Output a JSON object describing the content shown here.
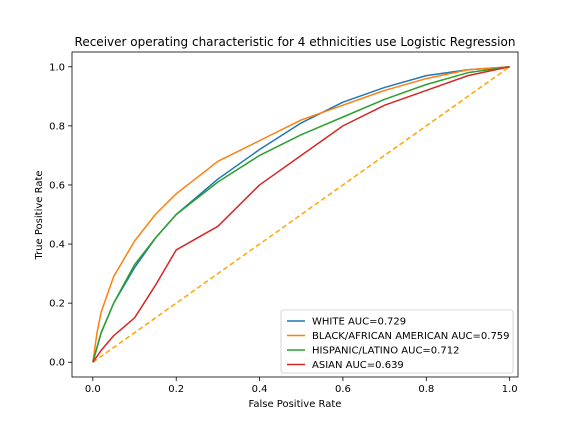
{
  "chart_data": {
    "type": "line",
    "title": "Receiver operating characteristic for 4 ethnicities use Logistic Regression",
    "xlabel": "False Positive Rate",
    "ylabel": "True Positive Rate",
    "xlim": [
      -0.05,
      1.02
    ],
    "ylim": [
      -0.05,
      1.05
    ],
    "xticks": [
      "0.0",
      "0.2",
      "0.4",
      "0.6",
      "0.8",
      "1.0"
    ],
    "yticks": [
      "0.0",
      "0.2",
      "0.4",
      "0.6",
      "0.8",
      "1.0"
    ],
    "grid": false,
    "legend_position": "lower-right",
    "series": [
      {
        "name": "WHITE AUC=0.729",
        "color": "#1f77b4",
        "x": [
          0,
          0.01,
          0.02,
          0.05,
          0.1,
          0.15,
          0.2,
          0.3,
          0.4,
          0.5,
          0.6,
          0.7,
          0.8,
          0.9,
          1.0
        ],
        "y": [
          0,
          0.05,
          0.1,
          0.2,
          0.32,
          0.42,
          0.5,
          0.62,
          0.72,
          0.81,
          0.88,
          0.93,
          0.97,
          0.99,
          1.0
        ]
      },
      {
        "name": "BLACK/AFRICAN AMERICAN AUC=0.759",
        "color": "#ff7f0e",
        "x": [
          0,
          0.01,
          0.02,
          0.05,
          0.1,
          0.15,
          0.2,
          0.3,
          0.4,
          0.5,
          0.6,
          0.7,
          0.8,
          0.9,
          1.0
        ],
        "y": [
          0,
          0.1,
          0.17,
          0.29,
          0.41,
          0.5,
          0.57,
          0.68,
          0.75,
          0.82,
          0.87,
          0.92,
          0.96,
          0.99,
          1.0
        ]
      },
      {
        "name": "HISPANIC/LATINO AUC=0.712",
        "color": "#2ca02c",
        "x": [
          0,
          0.01,
          0.02,
          0.05,
          0.1,
          0.15,
          0.2,
          0.3,
          0.4,
          0.5,
          0.6,
          0.7,
          0.8,
          0.9,
          1.0
        ],
        "y": [
          0,
          0.05,
          0.1,
          0.2,
          0.33,
          0.42,
          0.5,
          0.61,
          0.7,
          0.77,
          0.83,
          0.89,
          0.94,
          0.98,
          1.0
        ]
      },
      {
        "name": "ASIAN AUC=0.639",
        "color": "#d62728",
        "x": [
          0,
          0.02,
          0.05,
          0.1,
          0.15,
          0.2,
          0.3,
          0.4,
          0.5,
          0.6,
          0.7,
          0.8,
          0.9,
          1.0
        ],
        "y": [
          0,
          0.04,
          0.09,
          0.15,
          0.26,
          0.38,
          0.46,
          0.6,
          0.7,
          0.8,
          0.87,
          0.92,
          0.97,
          1.0
        ]
      },
      {
        "name": "",
        "color": "#ffa500",
        "dashed": true,
        "x": [
          0,
          1
        ],
        "y": [
          0,
          1
        ]
      }
    ]
  }
}
